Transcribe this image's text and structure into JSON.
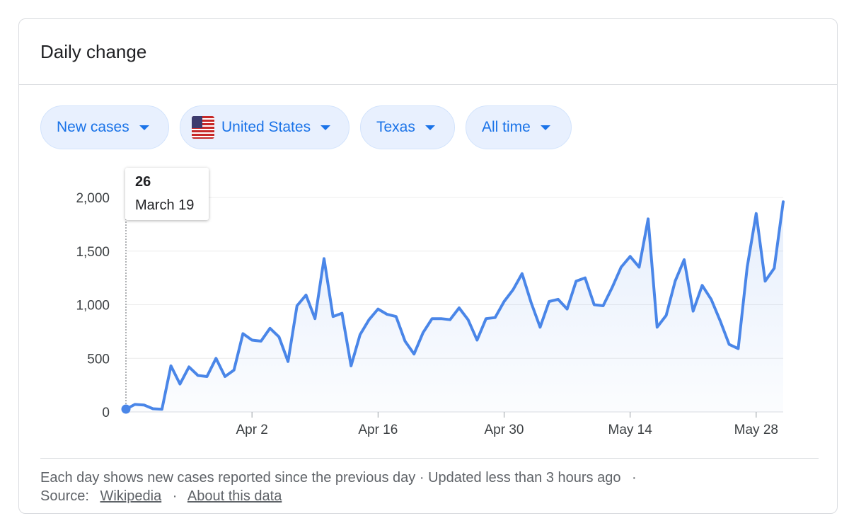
{
  "card": {
    "title": "Daily change"
  },
  "filters": [
    {
      "label": "New cases",
      "flag": false
    },
    {
      "label": "United States",
      "flag": true
    },
    {
      "label": "Texas",
      "flag": false
    },
    {
      "label": "All time",
      "flag": false
    }
  ],
  "tooltip": {
    "value": "26",
    "date": "March 19"
  },
  "footer": {
    "description": "Each day shows new cases reported since the previous day · Updated less than 3 hours ago",
    "dot": "·",
    "source_label": "Source:",
    "source_link": "Wikipedia",
    "about_link": "About this data"
  },
  "colors": {
    "line": "#4a86e8",
    "fill": "#4a86e8",
    "chip_bg": "#e8f0fe",
    "chip_text": "#1a73e8"
  },
  "chart_data": {
    "type": "area",
    "title": "",
    "xlabel": "",
    "ylabel": "",
    "ylim": [
      0,
      2000
    ],
    "yticks": [
      0,
      500,
      1000,
      1500,
      2000
    ],
    "ytick_labels": [
      "0",
      "500",
      "1,000",
      "1,500",
      "2,000"
    ],
    "xticks": [
      {
        "day": 14,
        "label": "Apr 2"
      },
      {
        "day": 28,
        "label": "Apr 16"
      },
      {
        "day": 42,
        "label": "Apr 30"
      },
      {
        "day": 56,
        "label": "May 14"
      },
      {
        "day": 70,
        "label": "May 28"
      }
    ],
    "x_start": "March 19",
    "series": [
      {
        "name": "New cases",
        "values": [
          26,
          70,
          65,
          30,
          25,
          430,
          260,
          420,
          340,
          330,
          500,
          330,
          390,
          730,
          670,
          660,
          780,
          700,
          470,
          990,
          1090,
          870,
          1430,
          890,
          920,
          430,
          720,
          860,
          960,
          910,
          890,
          660,
          540,
          740,
          870,
          870,
          860,
          970,
          860,
          670,
          870,
          880,
          1030,
          1140,
          1290,
          1020,
          790,
          1030,
          1050,
          960,
          1220,
          1250,
          1000,
          990,
          1160,
          1350,
          1450,
          1350,
          1800,
          790,
          900,
          1220,
          1420,
          940,
          1180,
          1050,
          850,
          630,
          590,
          1350,
          1850,
          1220,
          1340,
          1960
        ]
      }
    ],
    "highlight": {
      "index": 0
    }
  }
}
